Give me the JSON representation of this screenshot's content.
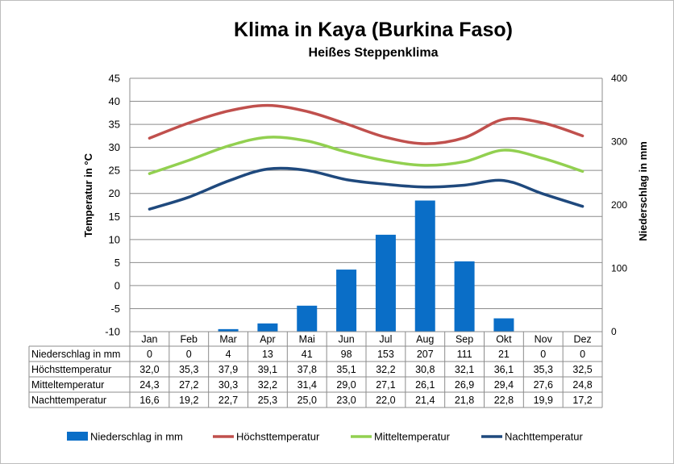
{
  "chart_data": {
    "type": "bar+line",
    "title": "Klima in Kaya (Burkina Faso)",
    "subtitle": "Heißes Steppenklima",
    "ylabel_left": "Temperatur in °C",
    "ylabel_right": "Niederschlag in mm",
    "ylim_left": [
      -10,
      45
    ],
    "yticks_left": [
      "45",
      "40",
      "35",
      "30",
      "25",
      "20",
      "15",
      "10",
      "5",
      "0",
      "-5",
      "-10"
    ],
    "ylim_right": [
      0,
      400
    ],
    "yticks_right": [
      "400",
      "300",
      "200",
      "100",
      "0"
    ],
    "grid": true,
    "legend_position": "bottom",
    "categories": [
      "Jan",
      "Feb",
      "Mar",
      "Apr",
      "Mai",
      "Jun",
      "Jul",
      "Aug",
      "Sep",
      "Okt",
      "Nov",
      "Dez"
    ],
    "bar_series": {
      "name": "Niederschlag in mm",
      "axis": "right",
      "color": "#0a6ec7",
      "values": [
        0,
        0,
        4,
        13,
        41,
        98,
        153,
        207,
        111,
        21,
        0,
        0
      ],
      "labels": [
        "0",
        "0",
        "4",
        "13",
        "41",
        "98",
        "153",
        "207",
        "111",
        "21",
        "0",
        "0"
      ]
    },
    "line_series": [
      {
        "name": "Höchsttemperatur",
        "axis": "left",
        "color": "#c0504d",
        "values": [
          32.0,
          35.3,
          37.9,
          39.1,
          37.8,
          35.1,
          32.2,
          30.8,
          32.1,
          36.1,
          35.3,
          32.5
        ],
        "labels": [
          "32,0",
          "35,3",
          "37,9",
          "39,1",
          "37,8",
          "35,1",
          "32,2",
          "30,8",
          "32,1",
          "36,1",
          "35,3",
          "32,5"
        ]
      },
      {
        "name": "Mitteltemperatur",
        "axis": "left",
        "color": "#92d050",
        "values": [
          24.3,
          27.2,
          30.3,
          32.2,
          31.4,
          29.0,
          27.1,
          26.1,
          26.9,
          29.4,
          27.6,
          24.8
        ],
        "labels": [
          "24,3",
          "27,2",
          "30,3",
          "32,2",
          "31,4",
          "29,0",
          "27,1",
          "26,1",
          "26,9",
          "29,4",
          "27,6",
          "24,8"
        ]
      },
      {
        "name": "Nachttemperatur",
        "axis": "left",
        "color": "#1f497d",
        "values": [
          16.6,
          19.2,
          22.7,
          25.3,
          25.0,
          23.0,
          22.0,
          21.4,
          21.8,
          22.8,
          19.9,
          17.2
        ],
        "labels": [
          "16,6",
          "19,2",
          "22,7",
          "25,3",
          "25,0",
          "23,0",
          "22,0",
          "21,4",
          "21,8",
          "22,8",
          "19,9",
          "17,2"
        ]
      }
    ]
  }
}
